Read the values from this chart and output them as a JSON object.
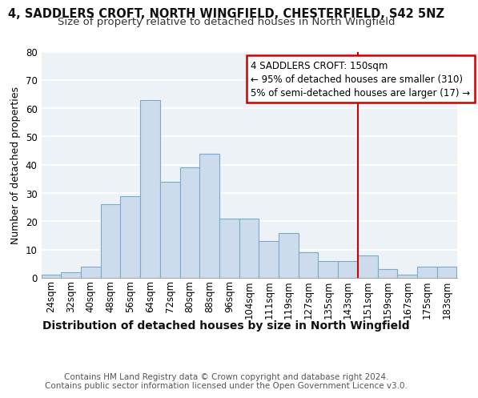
{
  "title1": "4, SADDLERS CROFT, NORTH WINGFIELD, CHESTERFIELD, S42 5NZ",
  "title2": "Size of property relative to detached houses in North Wingfield",
  "xlabel": "Distribution of detached houses by size in North Wingfield",
  "ylabel": "Number of detached properties",
  "footer1": "Contains HM Land Registry data © Crown copyright and database right 2024.",
  "footer2": "Contains public sector information licensed under the Open Government Licence v3.0.",
  "categories": [
    "24sqm",
    "32sqm",
    "40sqm",
    "48sqm",
    "56sqm",
    "64sqm",
    "72sqm",
    "80sqm",
    "88sqm",
    "96sqm",
    "104sqm",
    "111sqm",
    "119sqm",
    "127sqm",
    "135sqm",
    "143sqm",
    "151sqm",
    "159sqm",
    "167sqm",
    "175sqm",
    "183sqm"
  ],
  "values": [
    1,
    2,
    4,
    26,
    29,
    63,
    34,
    39,
    44,
    21,
    21,
    13,
    16,
    9,
    6,
    6,
    8,
    3,
    1,
    4,
    4
  ],
  "bar_color": "#ccdcec",
  "bar_edge_color": "#7aaac8",
  "annotation_text_line1": "4 SADDLERS CROFT: 150sqm",
  "annotation_text_line2": "← 95% of detached houses are smaller (310)",
  "annotation_text_line3": "5% of semi-detached houses are larger (17) →",
  "annotation_box_color": "#ffffff",
  "annotation_box_edge": "#cc0000",
  "vline_color": "#cc0000",
  "ylim": [
    0,
    80
  ],
  "yticks": [
    0,
    10,
    20,
    30,
    40,
    50,
    60,
    70,
    80
  ],
  "background_color": "#edf2f7",
  "grid_color": "#ffffff",
  "title1_fontsize": 10.5,
  "title2_fontsize": 9.5,
  "xlabel_fontsize": 10,
  "ylabel_fontsize": 9,
  "tick_fontsize": 8.5,
  "annotation_fontsize": 8.5,
  "footer_fontsize": 7.5
}
